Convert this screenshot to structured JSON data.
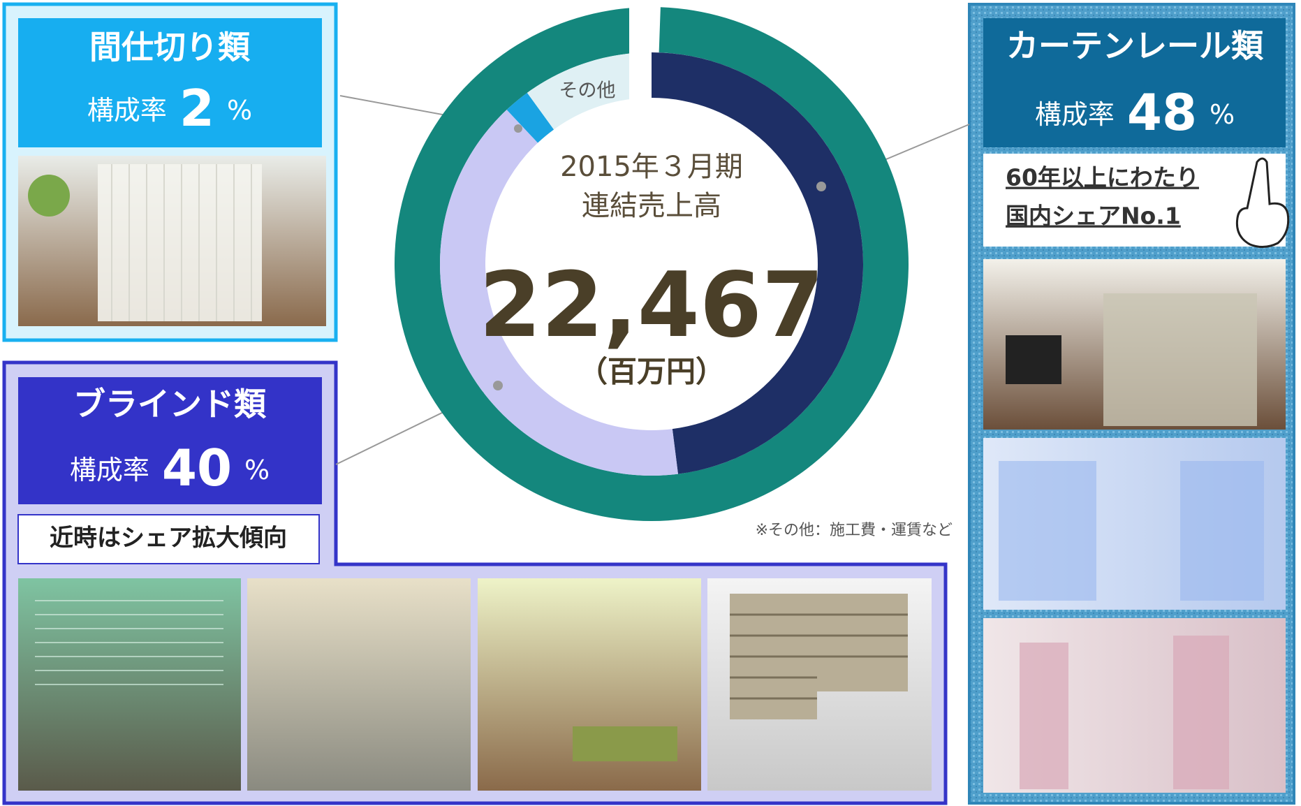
{
  "chart_data": {
    "type": "donut",
    "title": "2015年３月期",
    "subtitle": "連結売上高",
    "total_label": "22,467",
    "total_unit": "（百万円）",
    "categories": [
      "カーテンレール類",
      "ブラインド類",
      "間仕切り類",
      "その他"
    ],
    "values": [
      48,
      40,
      2,
      10
    ],
    "colors": [
      "#1e2f66",
      "#c9c8f4",
      "#1aa3e2",
      "#dff0f4"
    ],
    "ring_color": "#14877d",
    "share_label": "構成率",
    "unit_label": "%",
    "annotations": {
      "curtain_note_1": "60年以上にわたり",
      "curtain_note_2": "国内シェアNo.1",
      "blind_note": "近時はシェア拡大傾向",
      "footnote": "※その他：施工費・運賃など"
    }
  }
}
